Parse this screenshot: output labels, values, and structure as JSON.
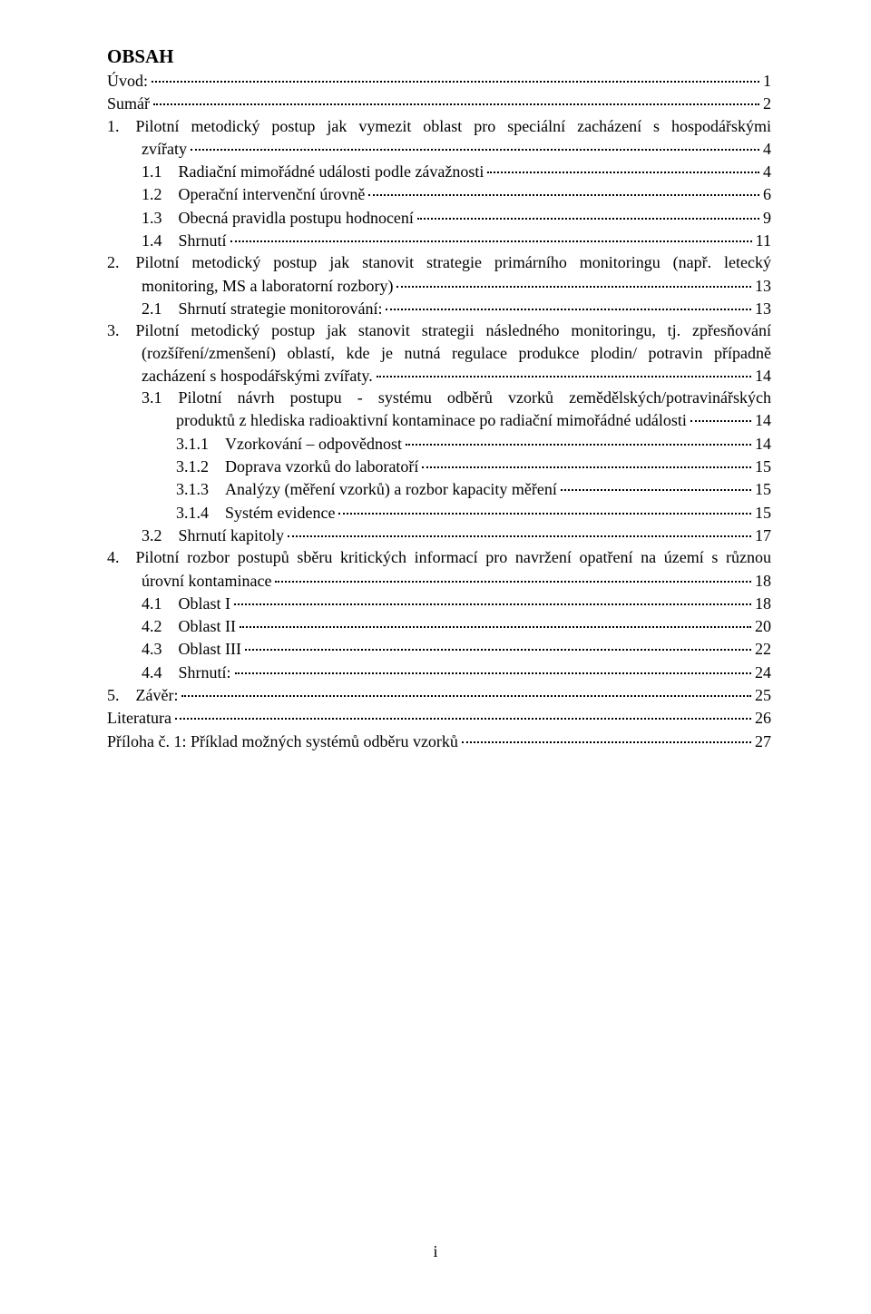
{
  "heading": "OBSAH",
  "page_number": "i",
  "font": {
    "family": "Times New Roman",
    "body_size_pt": 18,
    "heading_size_pt": 21,
    "color": "#000000",
    "background": "#ffffff"
  },
  "toc": [
    {
      "type": "leaf",
      "indent": 0,
      "label": "Úvod:",
      "page": "1"
    },
    {
      "type": "leaf",
      "indent": 0,
      "label": "Sumář",
      "page": "2"
    },
    {
      "type": "wrap",
      "indent": 0,
      "label": "1.",
      "lines": [
        "Pilotní metodický postup jak vymezit oblast pro speciální zacházení s hospodářskými"
      ],
      "tail": "zvířaty",
      "tail_indent": 1,
      "page": "4"
    },
    {
      "type": "leaf",
      "indent": 1,
      "label": "1.1",
      "text": "Radiační mimořádné události podle závažnosti",
      "page": "4"
    },
    {
      "type": "leaf",
      "indent": 1,
      "label": "1.2",
      "text": "Operační intervenční úrovně",
      "page": "6"
    },
    {
      "type": "leaf",
      "indent": 1,
      "label": "1.3",
      "text": "Obecná pravidla postupu hodnocení",
      "page": "9"
    },
    {
      "type": "leaf",
      "indent": 1,
      "label": "1.4",
      "text": "Shrnutí",
      "page": "11"
    },
    {
      "type": "wrap",
      "indent": 0,
      "label": "2.",
      "lines": [
        "Pilotní metodický postup jak stanovit strategie primárního monitoringu (např. letecký"
      ],
      "tail": "monitoring, MS a laboratorní rozbory)",
      "tail_indent": 1,
      "page": "13"
    },
    {
      "type": "leaf",
      "indent": 1,
      "label": "2.1",
      "text": "Shrnutí strategie monitorování:",
      "page": "13"
    },
    {
      "type": "wrap",
      "indent": 0,
      "label": "3.",
      "lines": [
        "Pilotní metodický postup jak stanovit strategii následného monitoringu, tj. zpřesňování",
        "(rozšíření/zmenšení)  oblastí, kde je nutná regulace produkce plodin/ potravin případně"
      ],
      "tail": "zacházení s hospodářskými zvířaty.",
      "tail_indent": 1,
      "page": "14"
    },
    {
      "type": "wrap",
      "indent": 1,
      "label": "3.1",
      "lines": [
        "Pilotní  návrh  postupu  -  systému  odběrů  vzorků  zemědělských/potravinářských"
      ],
      "tail": "produktů z hlediska radioaktivní kontaminace po radiační mimořádné události",
      "tail_indent": 2,
      "page": "14"
    },
    {
      "type": "leaf",
      "indent": 2,
      "label": "3.1.1",
      "text": "Vzorkování – odpovědnost",
      "page": "14"
    },
    {
      "type": "leaf",
      "indent": 2,
      "label": "3.1.2",
      "text": "Doprava vzorků do laboratoří",
      "page": "15"
    },
    {
      "type": "leaf",
      "indent": 2,
      "label": "3.1.3",
      "text": "Analýzy (měření vzorků) a rozbor kapacity měření",
      "page": "15"
    },
    {
      "type": "leaf",
      "indent": 2,
      "label": "3.1.4",
      "text": "Systém evidence",
      "page": "15"
    },
    {
      "type": "leaf",
      "indent": 1,
      "label": "3.2",
      "text": "Shrnutí kapitoly",
      "page": "17"
    },
    {
      "type": "wrap",
      "indent": 0,
      "label": "4.",
      "lines": [
        "Pilotní rozbor postupů sběru kritických informací pro navržení opatření na území s různou"
      ],
      "tail": "úrovní kontaminace",
      "tail_indent": 1,
      "page": "18"
    },
    {
      "type": "leaf",
      "indent": 1,
      "label": "4.1",
      "text": "Oblast I",
      "page": "18"
    },
    {
      "type": "leaf",
      "indent": 1,
      "label": "4.2",
      "text": "Oblast II",
      "page": "20"
    },
    {
      "type": "leaf",
      "indent": 1,
      "label": "4.3",
      "text": "Oblast III",
      "page": "22"
    },
    {
      "type": "leaf",
      "indent": 1,
      "label": "4.4",
      "text": "Shrnutí:",
      "page": "24"
    },
    {
      "type": "leaf",
      "indent": 0,
      "label": "5.",
      "text": "Závěr:",
      "page": "25"
    },
    {
      "type": "leaf",
      "indent": 0,
      "label": "Literatura",
      "page": "26"
    },
    {
      "type": "leaf",
      "indent": 0,
      "label": "Příloha č. 1: Příklad možných systémů odběru vzorků",
      "page": "27"
    }
  ]
}
